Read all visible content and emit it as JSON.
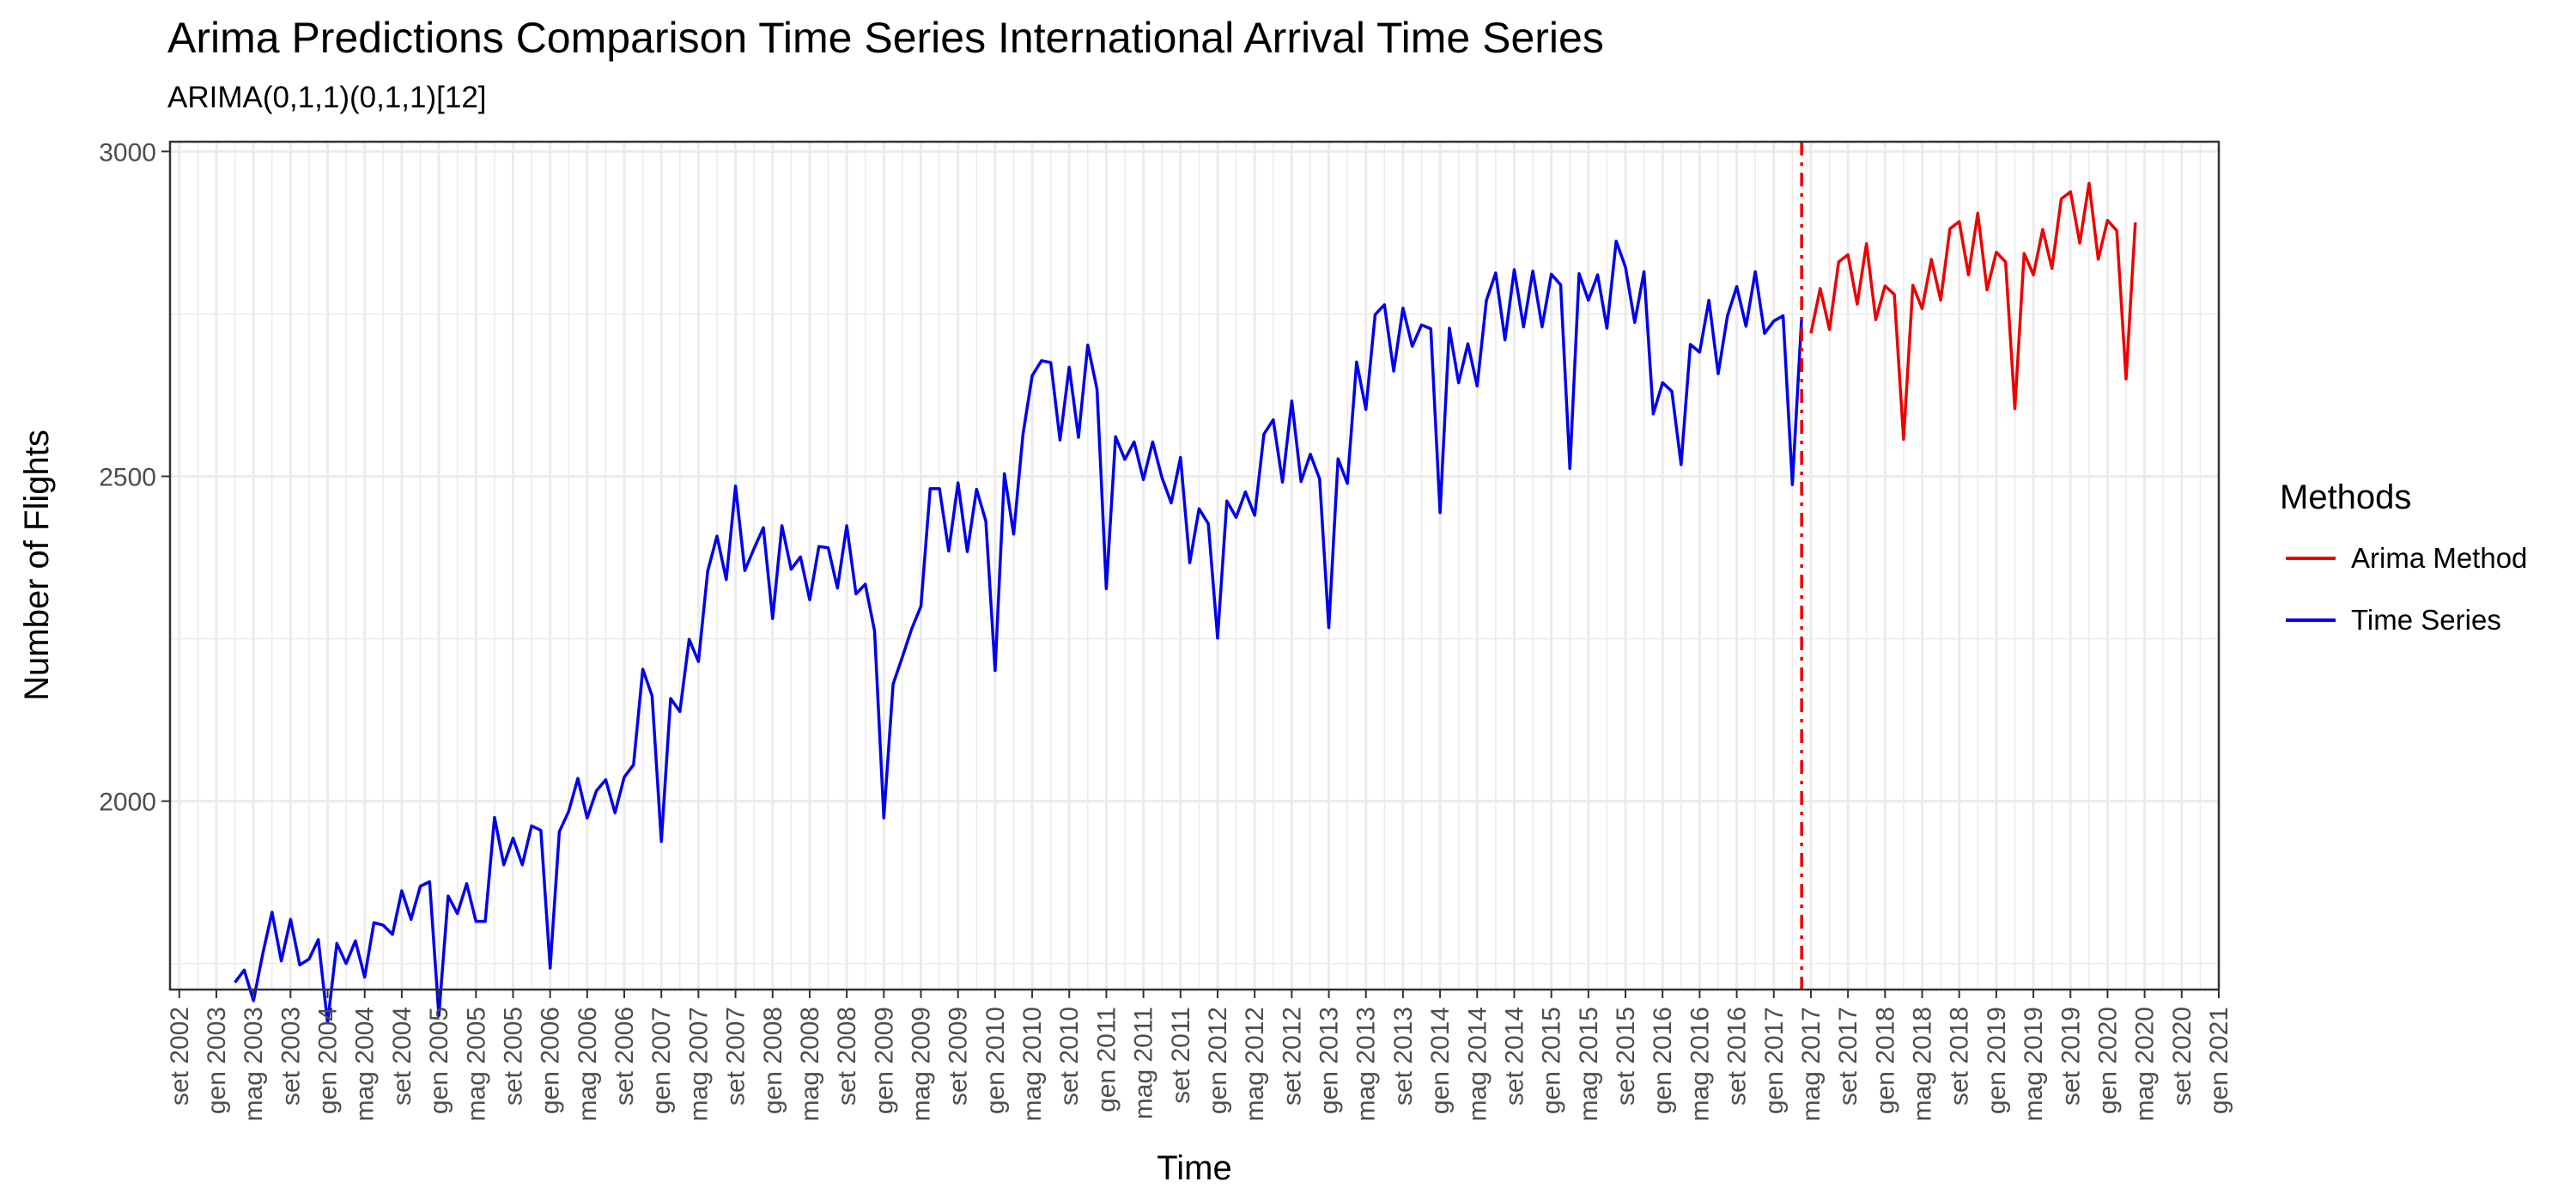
{
  "chart_data": {
    "type": "line",
    "title": "Arima Predictions Comparison Time Series International Arrival Time Series",
    "subtitle": "ARIMA(0,1,1)(0,1,1)[12]",
    "xlabel": "Time",
    "ylabel": "Number of Flights",
    "ylim": [
      1710,
      3015
    ],
    "y_ticks": [
      2000,
      2500,
      3000
    ],
    "y_tick_labels": [
      "2000",
      "2500",
      "3000"
    ],
    "x_tick_labels": [
      "set 2002",
      "gen 2003",
      "mag 2003",
      "set 2003",
      "gen 2004",
      "mag 2004",
      "set 2004",
      "gen 2005",
      "mag 2005",
      "set 2005",
      "gen 2006",
      "mag 2006",
      "set 2006",
      "gen 2007",
      "mag 2007",
      "set 2007",
      "gen 2008",
      "mag 2008",
      "set 2008",
      "gen 2009",
      "mag 2009",
      "set 2009",
      "gen 2010",
      "mag 2010",
      "set 2010",
      "gen 2011",
      "mag 2011",
      "set 2011",
      "gen 2012",
      "mag 2012",
      "set 2012",
      "gen 2013",
      "mag 2013",
      "set 2013",
      "gen 2014",
      "mag 2014",
      "set 2014",
      "gen 2015",
      "mag 2015",
      "set 2015",
      "gen 2016",
      "mag 2016",
      "set 2016",
      "gen 2017",
      "mag 2017",
      "set 2017",
      "gen 2018",
      "mag 2018",
      "set 2018",
      "gen 2019",
      "mag 2019",
      "set 2019",
      "gen 2020",
      "mag 2020",
      "set 2020",
      "gen 2021"
    ],
    "xlim": [
      "2002-08",
      "2021-01"
    ],
    "grid": true,
    "legend_position": "right",
    "legend_title": "Methods",
    "series": [
      {
        "name": "Time Series",
        "color": "#0000ee",
        "start": "2003-03",
        "values": [
          1721,
          1740,
          1693,
          1765,
          1829,
          1754,
          1818,
          1748,
          1757,
          1787,
          1659,
          1781,
          1750,
          1785,
          1729,
          1813,
          1809,
          1795,
          1862,
          1818,
          1869,
          1876,
          1670,
          1854,
          1827,
          1873,
          1815,
          1815,
          1975,
          1902,
          1943,
          1902,
          1962,
          1955,
          1743,
          1953,
          1984,
          2035,
          1974,
          2016,
          2033,
          1982,
          2037,
          2056,
          2203,
          2162,
          1938,
          2158,
          2138,
          2249,
          2215,
          2354,
          2408,
          2341,
          2485,
          2355,
          2389,
          2421,
          2281,
          2424,
          2357,
          2376,
          2310,
          2392,
          2390,
          2328,
          2424,
          2319,
          2334,
          2262,
          1974,
          2180,
          2222,
          2265,
          2300,
          2481,
          2481,
          2385,
          2490,
          2384,
          2480,
          2431,
          2201,
          2504,
          2411,
          2564,
          2655,
          2678,
          2675,
          2556,
          2668,
          2560,
          2702,
          2634,
          2327,
          2561,
          2526,
          2553,
          2495,
          2553,
          2498,
          2459,
          2529,
          2367,
          2450,
          2427,
          2251,
          2462,
          2437,
          2476,
          2440,
          2565,
          2587,
          2491,
          2616,
          2492,
          2534,
          2496,
          2267,
          2527,
          2489,
          2676,
          2603,
          2749,
          2764,
          2662,
          2759,
          2700,
          2733,
          2727,
          2444,
          2728,
          2644,
          2704,
          2639,
          2771,
          2813,
          2710,
          2818,
          2730,
          2816,
          2730,
          2811,
          2795,
          2512,
          2812,
          2771,
          2810,
          2728,
          2862,
          2822,
          2737,
          2815,
          2596,
          2644,
          2631,
          2518,
          2703,
          2691,
          2771,
          2658,
          2747,
          2792,
          2731,
          2815,
          2720,
          2739,
          2747,
          2487,
          2745
        ]
      },
      {
        "name": "Arima Method",
        "color": "#ee0000",
        "start": "2017-05",
        "values": [
          2720,
          2789,
          2726,
          2830,
          2841,
          2765,
          2858,
          2741,
          2793,
          2780,
          2557,
          2794,
          2758,
          2834,
          2771,
          2881,
          2892,
          2810,
          2905,
          2787,
          2845,
          2830,
          2604,
          2843,
          2810,
          2880,
          2820,
          2927,
          2938,
          2859,
          2951,
          2834,
          2894,
          2878,
          2650,
          2891
        ]
      }
    ],
    "annotations": [
      {
        "type": "vline",
        "x": "2017-04",
        "color": "#ee0000",
        "linestyle": "dashdot"
      }
    ]
  }
}
